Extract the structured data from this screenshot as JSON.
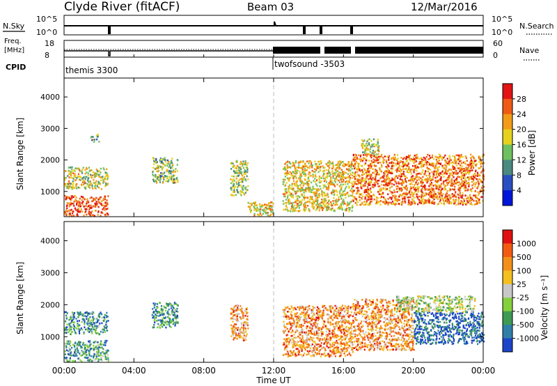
{
  "header": {
    "station": "Clyde River (fitACF)",
    "beam": "Beam 03",
    "date": "12/Mar/2016"
  },
  "aux": {
    "nsky_label": "N.Sky",
    "nsky_ticks": [
      "10^5",
      "10^0"
    ],
    "nsearch_label": "N.Search",
    "nsearch_ticks": [
      "10^5",
      "10^0"
    ],
    "freq_label_1": "Freq.",
    "freq_label_2": "[MHz]",
    "freq_ticks": [
      "18",
      "8"
    ],
    "nave_label": "Nave",
    "nave_ticks": [
      "60",
      "0"
    ],
    "cpid_label": "CPID",
    "cpid_programs": [
      {
        "name": "themis 3300",
        "start_hour": 0
      },
      {
        "name": "twofsound -3503",
        "start_hour": 12
      }
    ]
  },
  "chart_data": [
    {
      "type": "heatmap",
      "name": "power",
      "ylabel": "Slant Range [km]",
      "yticks": [
        "1000",
        "2000",
        "3000",
        "4000"
      ],
      "ylim": [
        200,
        4600
      ],
      "xlim_hours": [
        0,
        24
      ],
      "colorbar": {
        "label": "Power [dB]",
        "ticks": [
          "4",
          "8",
          "12",
          "16",
          "20",
          "24",
          "28"
        ],
        "colors": [
          "#0016d8",
          "#2a4fc0",
          "#4a8a80",
          "#6fc060",
          "#e6d21e",
          "#f19b18",
          "#ef5a14",
          "#e21414"
        ]
      },
      "echo_regions": [
        {
          "t0": 0.0,
          "t1": 2.5,
          "r0": 1100,
          "r1": 1800,
          "level": 0.55
        },
        {
          "t0": 0.0,
          "t1": 2.5,
          "r0": 250,
          "r1": 900,
          "level": 0.85
        },
        {
          "t0": 1.5,
          "t1": 2.0,
          "r0": 2600,
          "r1": 2850,
          "level": 0.45
        },
        {
          "t0": 5.0,
          "t1": 6.5,
          "r0": 1300,
          "r1": 2100,
          "level": 0.45
        },
        {
          "t0": 9.5,
          "t1": 10.5,
          "r0": 900,
          "r1": 2000,
          "level": 0.5
        },
        {
          "t0": 10.5,
          "t1": 12.0,
          "r0": 250,
          "r1": 700,
          "level": 0.6
        },
        {
          "t0": 12.5,
          "t1": 16.5,
          "r0": 400,
          "r1": 2000,
          "level": 0.6
        },
        {
          "t0": 16.5,
          "t1": 24.0,
          "r0": 600,
          "r1": 2200,
          "level": 0.75
        },
        {
          "t0": 17.0,
          "t1": 18.0,
          "r0": 2200,
          "r1": 2700,
          "level": 0.5
        }
      ]
    },
    {
      "type": "heatmap",
      "name": "velocity",
      "ylabel": "Slant Range [km]",
      "yticks": [
        "1000",
        "2000",
        "3000",
        "4000"
      ],
      "ylim": [
        200,
        4600
      ],
      "xlim_hours": [
        0,
        24
      ],
      "colorbar": {
        "label": "Velocity [m s⁻¹]",
        "ticks": [
          "1000",
          "500",
          "100",
          "25",
          "-25",
          "-100",
          "-500",
          "-1000"
        ],
        "colors": [
          "#1c44c8",
          "#2f7fa8",
          "#3e9a52",
          "#84d03c",
          "#c8c8c8",
          "#f3c020",
          "#f2901a",
          "#f25a12",
          "#e01010"
        ]
      },
      "echo_regions": [
        {
          "t0": 0.0,
          "t1": 2.5,
          "r0": 1100,
          "r1": 1800,
          "level": 0.25
        },
        {
          "t0": 0.0,
          "t1": 2.5,
          "r0": 250,
          "r1": 900,
          "level": 0.3
        },
        {
          "t0": 5.0,
          "t1": 6.5,
          "r0": 1300,
          "r1": 2100,
          "level": 0.25
        },
        {
          "t0": 9.5,
          "t1": 10.5,
          "r0": 900,
          "r1": 2000,
          "level": 0.7
        },
        {
          "t0": 12.5,
          "t1": 16.5,
          "r0": 400,
          "r1": 2000,
          "level": 0.72
        },
        {
          "t0": 16.5,
          "t1": 20.0,
          "r0": 600,
          "r1": 2200,
          "level": 0.7
        },
        {
          "t0": 20.0,
          "t1": 24.0,
          "r0": 800,
          "r1": 1800,
          "level": 0.1
        },
        {
          "t0": 19.0,
          "t1": 23.5,
          "r0": 1800,
          "r1": 2300,
          "level": 0.45
        }
      ]
    }
  ],
  "time_axis": {
    "ticks": [
      "00:00",
      "04:00",
      "08:00",
      "12:00",
      "16:00",
      "20:00",
      "00:00"
    ],
    "label": "Time UT"
  }
}
